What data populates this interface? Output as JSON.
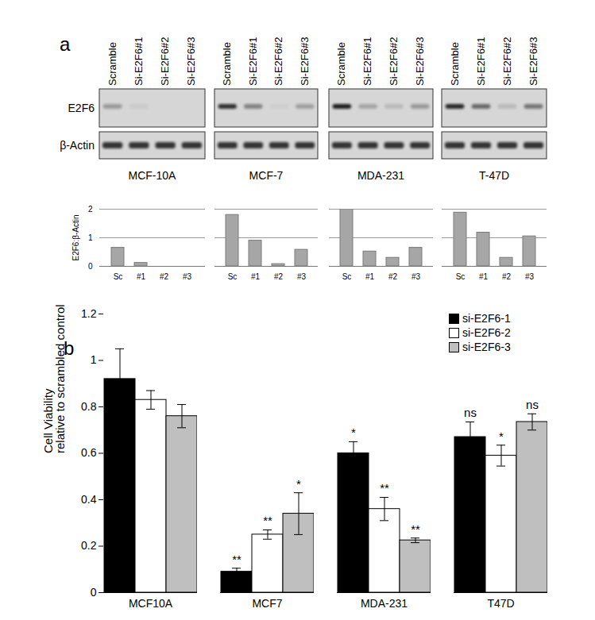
{
  "chart_data": [
    {
      "type": "bar",
      "panel_label": "a",
      "title": "MCF-10A",
      "blot": {
        "lanes": [
          "Scramble",
          "Si-E2F6#1",
          "Si-E2F6#2",
          "Si-E2F6#3"
        ],
        "rows": [
          "E2F6",
          "β-Actin"
        ]
      },
      "categories": [
        "Sc",
        "#1",
        "#2",
        "#3"
      ],
      "values": [
        0.65,
        0.12,
        0,
        0
      ],
      "color": "#a6a6a6",
      "ylabel": "E2F6:β-Actin",
      "ylim": [
        0,
        2
      ],
      "yticks": [
        0,
        1,
        2
      ],
      "grid": true
    },
    {
      "type": "bar",
      "title": "MCF-7",
      "blot": {
        "lanes": [
          "Scramble",
          "Si-E2F6#1",
          "Si-E2F6#2",
          "Si-E2F6#3"
        ]
      },
      "categories": [
        "Sc",
        "#1",
        "#2",
        "#3"
      ],
      "values": [
        1.8,
        0.9,
        0.08,
        0.58
      ],
      "color": "#a6a6a6",
      "ylim": [
        0,
        2
      ],
      "yticks": [
        0,
        1,
        2
      ],
      "grid": true,
      "tick_labels": "x"
    },
    {
      "type": "bar",
      "title": "MDA-231",
      "blot": {
        "lanes": [
          "Scramble",
          "Si-E2F6#1",
          "Si-E2F6#2",
          "Si-E2F6#3"
        ]
      },
      "categories": [
        "Sc",
        "#1",
        "#2",
        "#3"
      ],
      "values": [
        2.0,
        0.52,
        0.3,
        0.65
      ],
      "color": "#a6a6a6",
      "ylim": [
        0,
        2
      ],
      "yticks": [
        0,
        1,
        2
      ],
      "grid": true,
      "tick_labels": "x"
    },
    {
      "type": "bar",
      "title": "T-47D",
      "blot": {
        "lanes": [
          "Scramble",
          "Si-E2F6#1",
          "Si-E2F6#2",
          "Si-E2F6#3"
        ]
      },
      "categories": [
        "Sc",
        "#1",
        "#2",
        "#3"
      ],
      "values": [
        1.88,
        1.18,
        0.3,
        1.05
      ],
      "color": "#a6a6a6",
      "ylim": [
        0,
        2
      ],
      "yticks": [
        0,
        1,
        2
      ],
      "grid": true,
      "tick_labels": "x"
    },
    {
      "type": "bar",
      "panel_label": "b",
      "categories": [
        "MCF10A",
        "MCF7",
        "MDA-231",
        "T47D"
      ],
      "series": [
        {
          "name": "si-E2F6-1",
          "color": "#000000",
          "values": [
            0.92,
            0.09,
            0.6,
            0.67
          ],
          "errors": [
            0.13,
            0.015,
            0.05,
            0.065
          ],
          "annotations": [
            null,
            "**",
            "*",
            "ns"
          ]
        },
        {
          "name": "si-E2F6-2",
          "color": "#ffffff",
          "values": [
            0.83,
            0.25,
            0.36,
            0.59
          ],
          "errors": [
            0.04,
            0.02,
            0.05,
            0.045
          ],
          "annotations": [
            null,
            "**",
            "**",
            "*"
          ]
        },
        {
          "name": "si-E2F6-3",
          "color": "#bfbfbf",
          "values": [
            0.76,
            0.34,
            0.225,
            0.735
          ],
          "errors": [
            0.05,
            0.09,
            0.01,
            0.035
          ],
          "annotations": [
            null,
            "*",
            "**",
            "ns"
          ]
        }
      ],
      "ylabel": "Cell Viability\nrelative to scrambled control",
      "ylim": [
        0,
        1.2
      ],
      "yticks": [
        0,
        0.2,
        0.4,
        0.6,
        0.8,
        1,
        1.2
      ],
      "legend": "top-right"
    }
  ]
}
